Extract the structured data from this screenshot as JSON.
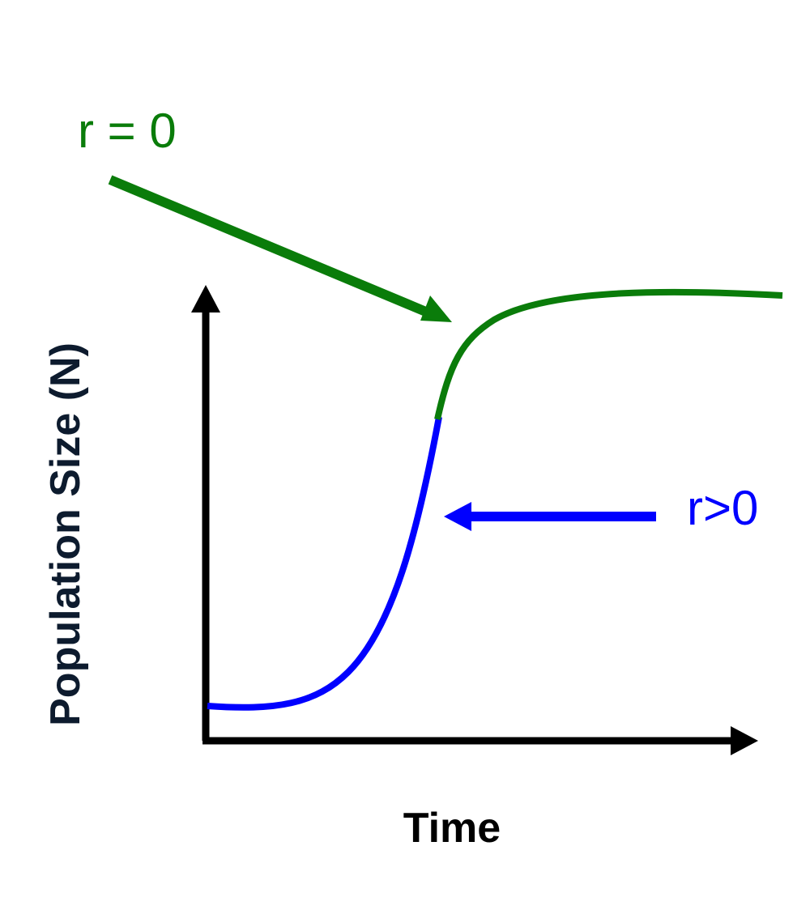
{
  "labels": {
    "y_axis": "Population Size (N)",
    "x_axis": "Time",
    "green_annotation": "r = 0",
    "blue_annotation": "r>0"
  },
  "colors": {
    "axis": "#000000",
    "axis_title_y": "#0d1b2e",
    "green": "#0a7c0a",
    "blue": "#0000ff"
  }
}
